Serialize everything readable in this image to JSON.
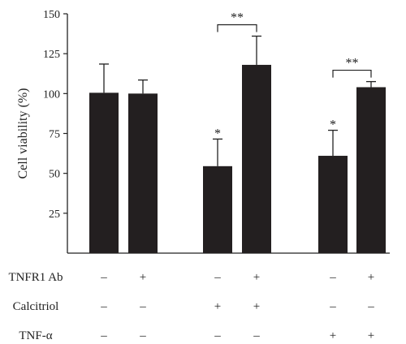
{
  "chart_data": {
    "type": "bar",
    "ylabel": "Cell viability (%)",
    "ylim": [
      0,
      150
    ],
    "yticks": [
      25,
      50,
      75,
      100,
      125,
      150
    ],
    "bar_color": "#231f20",
    "values": [
      100.5,
      100,
      54.5,
      118,
      61,
      104
    ],
    "errors": [
      18,
      8.5,
      17,
      18,
      16,
      3.5
    ],
    "groups": [
      [
        0,
        1
      ],
      [
        2,
        3
      ],
      [
        4,
        5
      ]
    ],
    "significance_single": [
      {
        "bar": 2,
        "label": "*"
      },
      {
        "bar": 4,
        "label": "*"
      }
    ],
    "significance_brackets": [
      {
        "from": 2,
        "to": 3,
        "label": "**"
      },
      {
        "from": 4,
        "to": 5,
        "label": "**"
      }
    ],
    "conditions": [
      {
        "name": "TNFR1 Ab",
        "values": [
          "–",
          "+",
          "–",
          "+",
          "–",
          "+"
        ]
      },
      {
        "name": "Calcitriol",
        "values": [
          "–",
          "–",
          "+",
          "+",
          "–",
          "–"
        ]
      },
      {
        "name": "TNF-α",
        "values": [
          "–",
          "–",
          "–",
          "–",
          "+",
          "+"
        ]
      }
    ]
  }
}
